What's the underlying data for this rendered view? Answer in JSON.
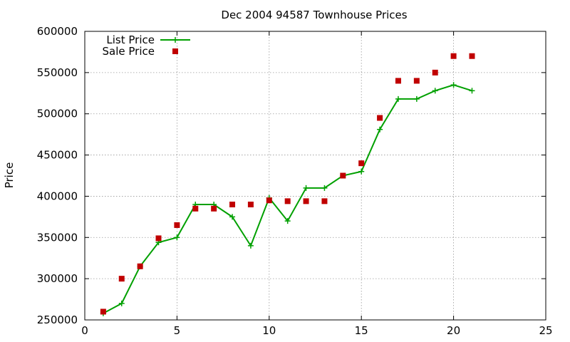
{
  "chart_data": {
    "type": "line",
    "title": "Dec 2004 94587 Townhouse Prices",
    "xlabel": "",
    "ylabel": "Price",
    "xlim": [
      0,
      25
    ],
    "ylim": [
      250000,
      600000
    ],
    "xticks": [
      0,
      5,
      10,
      15,
      20,
      25
    ],
    "yticks": [
      250000,
      300000,
      350000,
      400000,
      450000,
      500000,
      550000,
      600000
    ],
    "grid": true,
    "legend_position": "top-left",
    "series": [
      {
        "name": "List Price",
        "style": "line-plus",
        "color": "#00a000",
        "x": [
          1,
          2,
          3,
          4,
          5,
          6,
          7,
          8,
          9,
          10,
          11,
          12,
          13,
          14,
          15,
          16,
          17,
          18,
          19,
          20,
          21
        ],
        "y": [
          258000,
          270000,
          315000,
          344000,
          350000,
          390000,
          390000,
          375000,
          340000,
          398000,
          370000,
          410000,
          410000,
          425000,
          430000,
          481000,
          518000,
          518000,
          528000,
          535000,
          528000
        ]
      },
      {
        "name": "Sale Price",
        "style": "square",
        "color": "#c00000",
        "x": [
          1,
          2,
          3,
          4,
          5,
          6,
          7,
          8,
          9,
          10,
          11,
          12,
          13,
          14,
          15,
          16,
          17,
          18,
          19,
          20,
          21
        ],
        "y": [
          260000,
          300000,
          315000,
          349000,
          365000,
          385000,
          385000,
          390000,
          390000,
          395000,
          394000,
          394000,
          394000,
          425000,
          440000,
          495000,
          540000,
          540000,
          550000,
          570000,
          570000
        ]
      }
    ]
  }
}
